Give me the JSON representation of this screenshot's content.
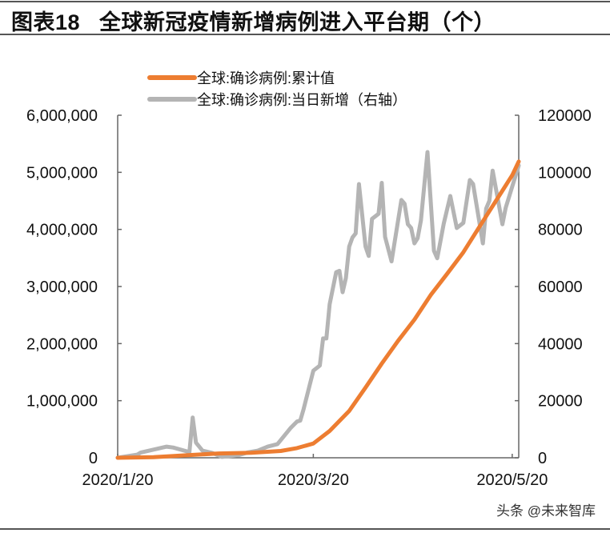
{
  "title": "图表18   全球新冠疫情新增病例进入平台期（个）",
  "watermark": "头条 @未来智库",
  "chart_data": {
    "type": "line",
    "title": "",
    "xlabel": "",
    "ylabel": "",
    "x_range": [
      "2020-01-20",
      "2020-05-22"
    ],
    "x_ticks": [
      "2020/1/20",
      "2020/3/20",
      "2020/5/20"
    ],
    "x_tick_dates": [
      "2020-01-20",
      "2020-03-20",
      "2020-05-20"
    ],
    "ylim_left": [
      0,
      6000000
    ],
    "ylim_right": [
      0,
      120000
    ],
    "y_ticks_left": [
      "0",
      "1,000,000",
      "2,000,000",
      "3,000,000",
      "4,000,000",
      "5,000,000",
      "6,000,000"
    ],
    "y_ticks_right": [
      "0",
      "20000",
      "40000",
      "60000",
      "80000",
      "100000",
      "120000"
    ],
    "grid": false,
    "legend_position": "top-center",
    "series": [
      {
        "name": "全球:确诊病例:累计值",
        "axis": "left",
        "color": "#ED7D31",
        "points": [
          [
            "2020-01-20",
            300
          ],
          [
            "2020-01-31",
            10000
          ],
          [
            "2020-02-10",
            43000
          ],
          [
            "2020-02-20",
            76000
          ],
          [
            "2020-03-01",
            88000
          ],
          [
            "2020-03-10",
            119000
          ],
          [
            "2020-03-15",
            170000
          ],
          [
            "2020-03-20",
            250000
          ],
          [
            "2020-03-25",
            470000
          ],
          [
            "2020-03-31",
            820000
          ],
          [
            "2020-04-05",
            1230000
          ],
          [
            "2020-04-10",
            1650000
          ],
          [
            "2020-04-15",
            2050000
          ],
          [
            "2020-04-20",
            2420000
          ],
          [
            "2020-04-25",
            2850000
          ],
          [
            "2020-04-30",
            3220000
          ],
          [
            "2020-05-05",
            3600000
          ],
          [
            "2020-05-10",
            4050000
          ],
          [
            "2020-05-15",
            4500000
          ],
          [
            "2020-05-20",
            4950000
          ],
          [
            "2020-05-22",
            5190000
          ]
        ]
      },
      {
        "name": "全球:确诊病例:当日新增（右轴）",
        "axis": "right",
        "color": "#B4B4B4",
        "points": [
          [
            "2020-01-20",
            0
          ],
          [
            "2020-01-26",
            1100
          ],
          [
            "2020-01-27",
            1800
          ],
          [
            "2020-02-04",
            3900
          ],
          [
            "2020-02-06",
            3600
          ],
          [
            "2020-02-11",
            2000
          ],
          [
            "2020-02-12",
            14100
          ],
          [
            "2020-02-13",
            5300
          ],
          [
            "2020-02-15",
            2500
          ],
          [
            "2020-02-18",
            1700
          ],
          [
            "2020-02-21",
            300
          ],
          [
            "2020-02-26",
            900
          ],
          [
            "2020-02-29",
            1900
          ],
          [
            "2020-03-03",
            2500
          ],
          [
            "2020-03-06",
            3900
          ],
          [
            "2020-03-09",
            4800
          ],
          [
            "2020-03-13",
            10400
          ],
          [
            "2020-03-15",
            12700
          ],
          [
            "2020-03-16",
            13000
          ],
          [
            "2020-03-17",
            17000
          ],
          [
            "2020-03-20",
            30500
          ],
          [
            "2020-03-22",
            32300
          ],
          [
            "2020-03-23",
            41800
          ],
          [
            "2020-03-24",
            41800
          ],
          [
            "2020-03-25",
            53800
          ],
          [
            "2020-03-27",
            65000
          ],
          [
            "2020-03-28",
            65500
          ],
          [
            "2020-03-29",
            58000
          ],
          [
            "2020-03-30",
            63000
          ],
          [
            "2020-03-31",
            74000
          ],
          [
            "2020-04-01",
            77200
          ],
          [
            "2020-04-02",
            78600
          ],
          [
            "2020-04-03",
            95900
          ],
          [
            "2020-04-05",
            74000
          ],
          [
            "2020-04-06",
            70700
          ],
          [
            "2020-04-07",
            83700
          ],
          [
            "2020-04-09",
            85500
          ],
          [
            "2020-04-10",
            96300
          ],
          [
            "2020-04-11",
            77400
          ],
          [
            "2020-04-13",
            68800
          ],
          [
            "2020-04-16",
            90300
          ],
          [
            "2020-04-17",
            89000
          ],
          [
            "2020-04-18",
            81800
          ],
          [
            "2020-04-19",
            80500
          ],
          [
            "2020-04-20",
            75100
          ],
          [
            "2020-04-21",
            76900
          ],
          [
            "2020-04-22",
            83100
          ],
          [
            "2020-04-24",
            107100
          ],
          [
            "2020-04-26",
            72500
          ],
          [
            "2020-04-27",
            69900
          ],
          [
            "2020-04-29",
            82000
          ],
          [
            "2020-05-01",
            91700
          ],
          [
            "2020-05-03",
            80500
          ],
          [
            "2020-05-05",
            82300
          ],
          [
            "2020-05-07",
            97300
          ],
          [
            "2020-05-08",
            95900
          ],
          [
            "2020-05-11",
            75100
          ],
          [
            "2020-05-12",
            87300
          ],
          [
            "2020-05-13",
            90000
          ],
          [
            "2020-05-14",
            100600
          ],
          [
            "2020-05-17",
            81800
          ],
          [
            "2020-05-18",
            87600
          ],
          [
            "2020-05-22",
            102400
          ]
        ]
      }
    ]
  }
}
